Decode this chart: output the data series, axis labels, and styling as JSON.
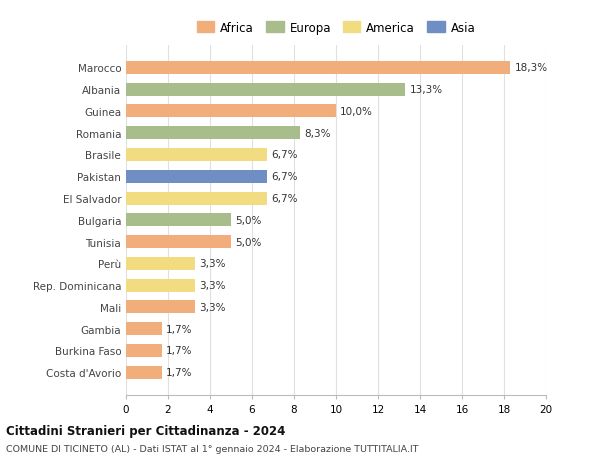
{
  "countries": [
    "Marocco",
    "Albania",
    "Guinea",
    "Romania",
    "Brasile",
    "Pakistan",
    "El Salvador",
    "Bulgaria",
    "Tunisia",
    "Perù",
    "Rep. Dominicana",
    "Mali",
    "Gambia",
    "Burkina Faso",
    "Costa d'Avorio"
  ],
  "values": [
    18.3,
    13.3,
    10.0,
    8.3,
    6.7,
    6.7,
    6.7,
    5.0,
    5.0,
    3.3,
    3.3,
    3.3,
    1.7,
    1.7,
    1.7
  ],
  "labels": [
    "18,3%",
    "13,3%",
    "10,0%",
    "8,3%",
    "6,7%",
    "6,7%",
    "6,7%",
    "5,0%",
    "5,0%",
    "3,3%",
    "3,3%",
    "3,3%",
    "1,7%",
    "1,7%",
    "1,7%"
  ],
  "continents": [
    "Africa",
    "Europa",
    "Africa",
    "Europa",
    "America",
    "Asia",
    "America",
    "Europa",
    "Africa",
    "America",
    "America",
    "Africa",
    "Africa",
    "Africa",
    "Africa"
  ],
  "colors": {
    "Africa": "#F2AE7A",
    "Europa": "#A8BC8C",
    "America": "#F2DC82",
    "Asia": "#6E8EC4"
  },
  "legend_order": [
    "Africa",
    "Europa",
    "America",
    "Asia"
  ],
  "xlim": [
    0,
    20
  ],
  "xticks": [
    0,
    2,
    4,
    6,
    8,
    10,
    12,
    14,
    16,
    18,
    20
  ],
  "title": "Cittadini Stranieri per Cittadinanza - 2024",
  "subtitle": "COMUNE DI TICINETO (AL) - Dati ISTAT al 1° gennaio 2024 - Elaborazione TUTTITALIA.IT",
  "bg_color": "#ffffff",
  "grid_color": "#e0e0e0",
  "bar_height": 0.6
}
